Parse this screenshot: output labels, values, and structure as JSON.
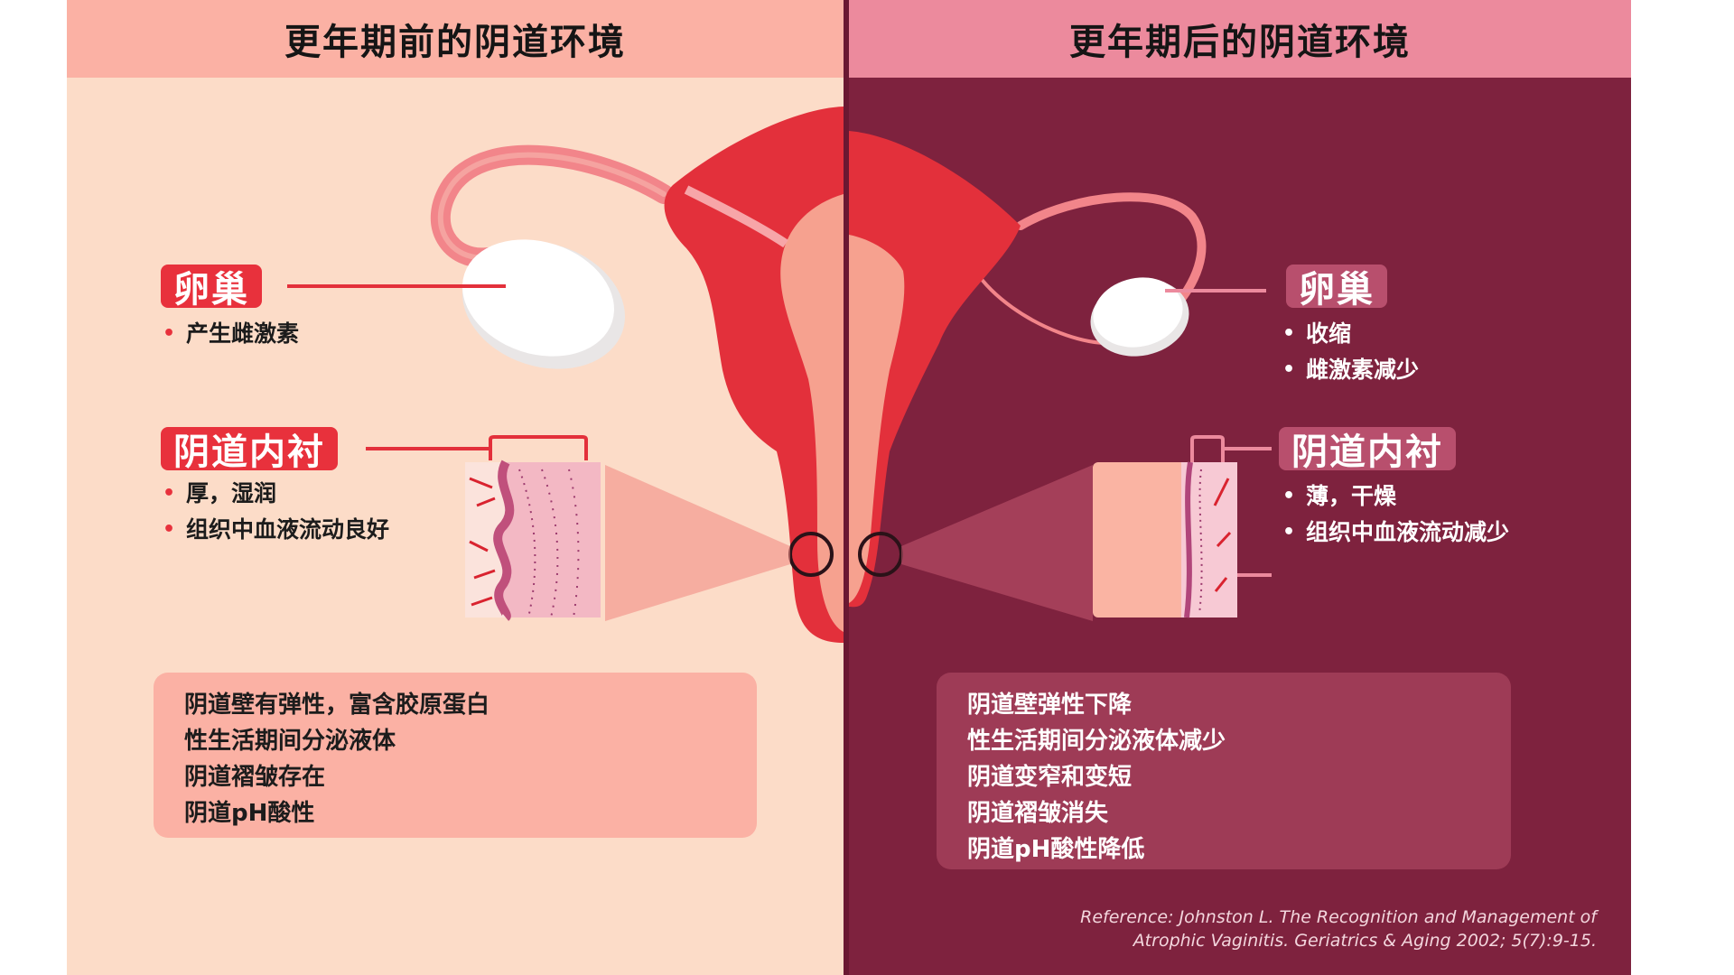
{
  "left": {
    "header": "更年期前的阴道环境",
    "ovary_label": "卵巢",
    "ovary_points": [
      "产生雌激素"
    ],
    "lining_label": "阴道内衬",
    "lining_points": [
      "厚，湿润",
      "组织中血液流动良好"
    ],
    "summary": [
      "阴道壁有弹性，富含胶原蛋白",
      "性生活期间分泌液体",
      "阴道褶皱存在",
      "阴道pH酸性"
    ]
  },
  "right": {
    "header": "更年期后的阴道环境",
    "ovary_label": "卵巢",
    "ovary_points": [
      "收缩",
      "雌激素减少"
    ],
    "lining_label": "阴道内衬",
    "lining_points": [
      "薄，干燥",
      "组织中血液流动减少"
    ],
    "summary": [
      "阴道壁弹性下降",
      "性生活期间分泌液体减少",
      "阴道变窄和变短",
      "阴道褶皱消失",
      "阴道pH酸性降低"
    ]
  },
  "reference": {
    "line1": "Reference: Johnston L. The Recognition and Management of",
    "line2": "Atrophic Vaginitis. Geriatrics & Aging 2002; 5(7):9-15."
  },
  "colors": {
    "left_background": "#fcdcc8",
    "left_header": "#fbb1a4",
    "right_background": "#7e223e",
    "right_header": "#ec8a9d",
    "uterus_red": "#e3303b",
    "tag_left": "#e8313c",
    "tag_right": "#b84f6d"
  }
}
